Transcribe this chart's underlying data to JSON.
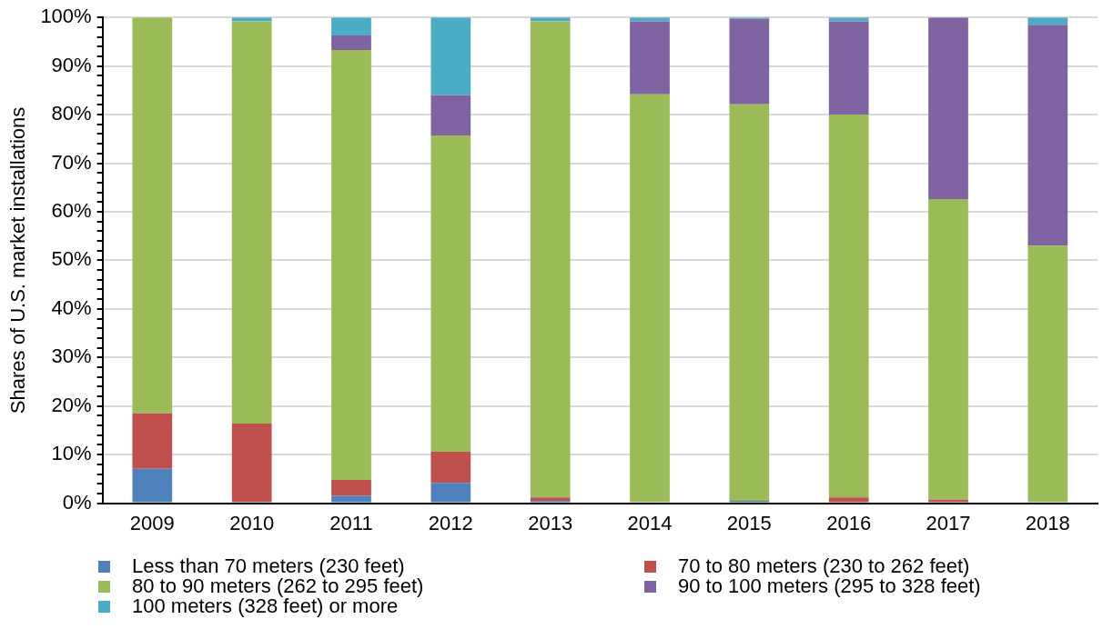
{
  "chart_data": {
    "type": "bar",
    "stacked": true,
    "ylabel": "Shares of U.S. market installations",
    "categories": [
      "2009",
      "2010",
      "2011",
      "2012",
      "2013",
      "2014",
      "2015",
      "2016",
      "2017",
      "2018"
    ],
    "series": [
      {
        "name": "Less than 70 meters (230 feet)",
        "color": "#4f81bd",
        "values": [
          7.1,
          0.3,
          1.5,
          4.2,
          0.5,
          0,
          0.5,
          0,
          0,
          0
        ]
      },
      {
        "name": "70 to 80 meters (230 to 262 feet)",
        "color": "#c0504d",
        "values": [
          11.4,
          16.1,
          3.3,
          6.4,
          0.7,
          0,
          0,
          1.2,
          0.7,
          0
        ]
      },
      {
        "name": "80 to 90 meters (262 to 295 feet)",
        "color": "#9bbb59",
        "values": [
          81.5,
          82.8,
          88.5,
          65.1,
          98.0,
          84.2,
          81.6,
          78.8,
          61.9,
          53.0
        ]
      },
      {
        "name": "90 to 100 meters (295 to 328 feet)",
        "color": "#8064a2",
        "values": [
          0,
          0,
          3.0,
          8.3,
          0,
          15.0,
          17.6,
          19.2,
          37.4,
          45.5
        ]
      },
      {
        "name": "100 meters (328 feet) or more",
        "color": "#4bacc6",
        "values": [
          0,
          0.8,
          3.7,
          16.0,
          0.8,
          0.8,
          0.3,
          0.8,
          0,
          1.5
        ]
      }
    ],
    "ylim": [
      0,
      100
    ],
    "yticks": [
      {
        "value": 0,
        "label": "0%"
      },
      {
        "value": 2,
        "label": null
      },
      {
        "value": 4,
        "label": null
      },
      {
        "value": 6,
        "label": null
      },
      {
        "value": 8,
        "label": null
      },
      {
        "value": 10,
        "label": "10%"
      },
      {
        "value": 12,
        "label": null
      },
      {
        "value": 14,
        "label": null
      },
      {
        "value": 16,
        "label": null
      },
      {
        "value": 18,
        "label": null
      },
      {
        "value": 20,
        "label": "20%"
      },
      {
        "value": 22,
        "label": null
      },
      {
        "value": 24,
        "label": null
      },
      {
        "value": 26,
        "label": null
      },
      {
        "value": 28,
        "label": null
      },
      {
        "value": 30,
        "label": "30%"
      },
      {
        "value": 32,
        "label": null
      },
      {
        "value": 34,
        "label": null
      },
      {
        "value": 36,
        "label": null
      },
      {
        "value": 38,
        "label": null
      },
      {
        "value": 40,
        "label": "40%"
      },
      {
        "value": 42,
        "label": null
      },
      {
        "value": 44,
        "label": null
      },
      {
        "value": 46,
        "label": null
      },
      {
        "value": 48,
        "label": null
      },
      {
        "value": 50,
        "label": "50%"
      },
      {
        "value": 52,
        "label": null
      },
      {
        "value": 54,
        "label": null
      },
      {
        "value": 56,
        "label": null
      },
      {
        "value": 58,
        "label": null
      },
      {
        "value": 60,
        "label": "60%"
      },
      {
        "value": 62,
        "label": null
      },
      {
        "value": 64,
        "label": null
      },
      {
        "value": 66,
        "label": null
      },
      {
        "value": 68,
        "label": null
      },
      {
        "value": 70,
        "label": "70%"
      },
      {
        "value": 72,
        "label": null
      },
      {
        "value": 74,
        "label": null
      },
      {
        "value": 76,
        "label": null
      },
      {
        "value": 78,
        "label": null
      },
      {
        "value": 80,
        "label": "80%"
      },
      {
        "value": 82,
        "label": null
      },
      {
        "value": 84,
        "label": null
      },
      {
        "value": 86,
        "label": null
      },
      {
        "value": 88,
        "label": null
      },
      {
        "value": 90,
        "label": "90%"
      },
      {
        "value": 92,
        "label": null
      },
      {
        "value": 94,
        "label": null
      },
      {
        "value": 96,
        "label": null
      },
      {
        "value": 98,
        "label": null
      },
      {
        "value": 100,
        "label": "100%"
      }
    ],
    "grid": "y",
    "legend": "bottom"
  }
}
